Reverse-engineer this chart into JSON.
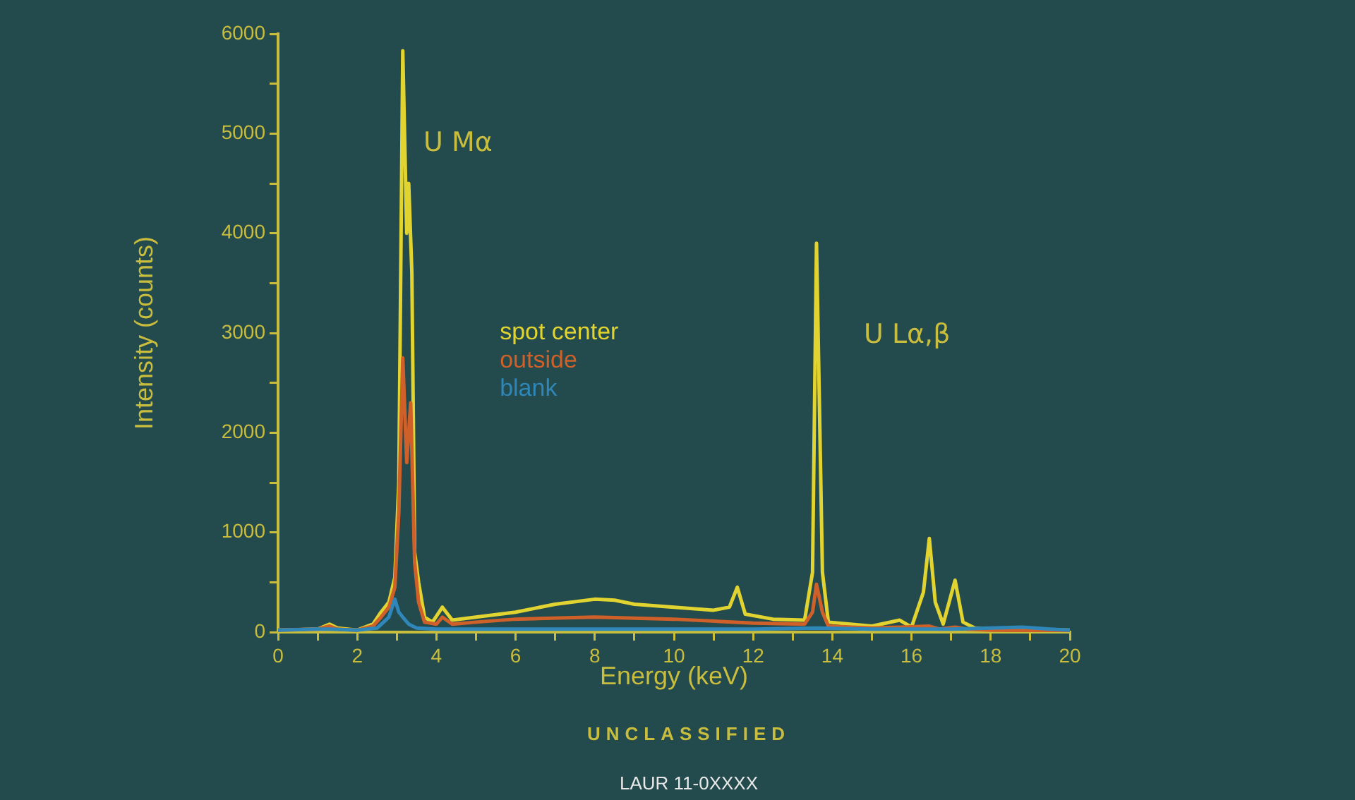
{
  "chart_data": {
    "type": "line",
    "xlabel": "Energy (keV)",
    "ylabel": "Intensity (counts)",
    "xlim": [
      0,
      20
    ],
    "xticks": [
      0,
      {
        "value": 1,
        "label": null
      },
      2,
      {
        "value": 3,
        "label": null
      },
      4,
      {
        "value": 5,
        "label": null
      },
      6,
      {
        "value": 7,
        "label": null
      },
      8,
      {
        "value": 9,
        "label": null
      },
      10,
      {
        "value": 11,
        "label": null
      },
      12,
      {
        "value": 13,
        "label": null
      },
      14,
      {
        "value": 15,
        "label": null
      },
      16,
      {
        "value": 17,
        "label": null
      },
      18,
      {
        "value": 19,
        "label": null
      },
      20
    ],
    "ylim": [
      0,
      6000
    ],
    "yticks": [
      0,
      {
        "value": 500,
        "label": null
      },
      1000,
      {
        "value": 1500,
        "label": null
      },
      2000,
      {
        "value": 2500,
        "label": null
      },
      3000,
      {
        "value": 3500,
        "label": null
      },
      4000,
      {
        "value": 4500,
        "label": null
      },
      5000,
      {
        "value": 5500,
        "label": null
      },
      6000
    ],
    "grid": false,
    "marker": "none",
    "line_style": "solid",
    "series": [
      {
        "name": "blank",
        "color": "#2f86b8",
        "x": [
          0,
          1,
          1.3,
          2,
          2.5,
          2.8,
          2.95,
          3.05,
          3.15,
          3.3,
          3.5,
          4,
          6,
          8,
          10,
          12,
          13.6,
          15,
          17,
          18,
          18.8,
          19.5,
          20
        ],
        "values": [
          20,
          30,
          30,
          20,
          40,
          150,
          330,
          200,
          150,
          80,
          40,
          30,
          30,
          30,
          30,
          30,
          40,
          30,
          30,
          40,
          50,
          30,
          20
        ]
      },
      {
        "name": "outside",
        "color": "#d0602a",
        "x": [
          0,
          1,
          1.3,
          1.5,
          2,
          2.4,
          2.6,
          2.8,
          2.95,
          3.05,
          3.15,
          3.25,
          3.35,
          3.45,
          3.55,
          3.7,
          4,
          4.15,
          4.4,
          5,
          6,
          8,
          10,
          12,
          13.3,
          13.5,
          13.6,
          13.75,
          13.9,
          15,
          16.45,
          16.7,
          17.1,
          17.4,
          18,
          20
        ],
        "values": [
          20,
          30,
          60,
          30,
          20,
          60,
          150,
          250,
          450,
          1200,
          2750,
          1700,
          2300,
          700,
          300,
          100,
          80,
          150,
          80,
          100,
          130,
          150,
          130,
          90,
          80,
          200,
          480,
          200,
          60,
          40,
          60,
          30,
          50,
          30,
          20,
          10
        ]
      },
      {
        "name": "spot center",
        "color": "#e2d430",
        "x": [
          0,
          1,
          1.3,
          1.5,
          2,
          2.4,
          2.6,
          2.8,
          2.95,
          3.05,
          3.15,
          3.25,
          3.3,
          3.38,
          3.45,
          3.55,
          3.7,
          3.9,
          4.15,
          4.4,
          5,
          6,
          7,
          8,
          8.5,
          9,
          10,
          11,
          11.4,
          11.6,
          11.8,
          12.5,
          13.3,
          13.5,
          13.6,
          13.75,
          13.9,
          15,
          15.7,
          16,
          16.3,
          16.45,
          16.6,
          16.8,
          17.1,
          17.3,
          17.6,
          18,
          19,
          20
        ],
        "values": [
          20,
          30,
          80,
          40,
          20,
          80,
          200,
          300,
          550,
          1500,
          5830,
          4000,
          4500,
          3600,
          800,
          500,
          150,
          100,
          250,
          120,
          150,
          200,
          280,
          330,
          320,
          280,
          250,
          220,
          250,
          450,
          180,
          130,
          120,
          600,
          3900,
          600,
          100,
          60,
          120,
          50,
          400,
          940,
          300,
          80,
          520,
          100,
          40,
          30,
          30,
          20
        ]
      }
    ],
    "annotations": [
      "U Mα",
      "U Lα,β",
      "UNCLASSIFIED",
      "LAUR 11-0XXXX"
    ]
  }
}
